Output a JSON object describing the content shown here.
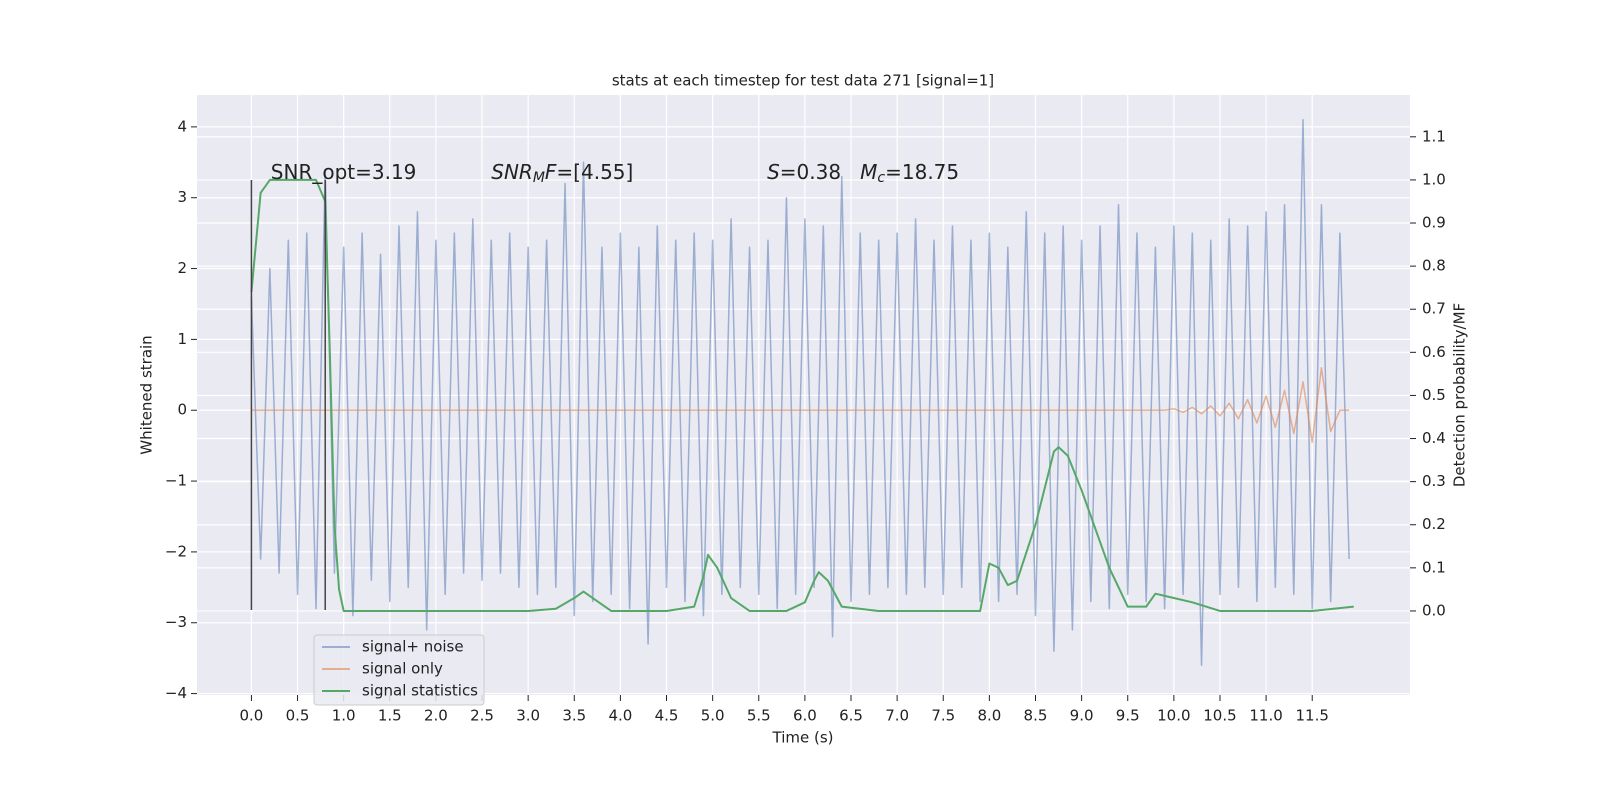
{
  "chart_data": {
    "type": "line",
    "title": "stats at each timestep for test data 271 [signal=1]",
    "xlabel": "Time (s)",
    "ylabel": "Whitened strain",
    "y2label": "Detection probability/MF",
    "xlim": [
      -0.59,
      12.56
    ],
    "ylim": [
      -4.02,
      4.45
    ],
    "y2lim": [
      -0.195,
      1.197
    ],
    "background": "#eaeaf2",
    "grid": true,
    "legend": "lower left",
    "xticks": [
      {
        "value": 0,
        "label": "0.0"
      },
      0.5,
      {
        "value": 1,
        "label": "1.0"
      },
      1.5,
      {
        "value": 2,
        "label": "2.0"
      },
      2.5,
      {
        "value": 3,
        "label": "3.0"
      },
      3.5,
      {
        "value": 4,
        "label": "4.0"
      },
      4.5,
      {
        "value": 5,
        "label": "5.0"
      },
      5.5,
      {
        "value": 6,
        "label": "6.0"
      },
      6.5,
      {
        "value": 7,
        "label": "7.0"
      },
      7.5,
      {
        "value": 8,
        "label": "8.0"
      },
      8.5,
      {
        "value": 9,
        "label": "9.0"
      },
      9.5,
      {
        "value": 10,
        "label": "10.0"
      },
      10.5,
      {
        "value": 11,
        "label": "11.0"
      },
      11.5
    ],
    "yticks": [
      {
        "value": -4,
        "label": "−4"
      },
      {
        "value": -3,
        "label": "−3"
      },
      {
        "value": -2,
        "label": "−2"
      },
      {
        "value": -1,
        "label": "−1"
      },
      0,
      1,
      2,
      3,
      4
    ],
    "y2ticks": [
      {
        "value": 0,
        "label": "0.0"
      },
      0.1,
      0.2,
      0.3,
      0.4,
      0.5,
      0.6,
      0.7,
      0.8,
      0.9,
      {
        "value": 1,
        "label": "1.0"
      },
      1.1
    ],
    "x": [
      0,
      0.1,
      0.2,
      0.3,
      0.4,
      0.5,
      0.6,
      0.7,
      0.8,
      0.9,
      1,
      1.1,
      1.2,
      1.3,
      1.4,
      1.5,
      1.6,
      1.7,
      1.8,
      1.9,
      2,
      2.1,
      2.2,
      2.3,
      2.4,
      2.5,
      2.6,
      2.7,
      2.8,
      2.9,
      3,
      3.1,
      3.2,
      3.3,
      3.4,
      3.5,
      3.6,
      3.7,
      3.8,
      3.9,
      4,
      4.1,
      4.2,
      4.3,
      4.4,
      4.5,
      4.6,
      4.7,
      4.8,
      4.9,
      5,
      5.1,
      5.2,
      5.3,
      5.4,
      5.5,
      5.6,
      5.7,
      5.8,
      5.9,
      6,
      6.1,
      6.2,
      6.3,
      6.4,
      6.5,
      6.6,
      6.7,
      6.8,
      6.9,
      7,
      7.1,
      7.2,
      7.3,
      7.4,
      7.5,
      7.6,
      7.7,
      7.8,
      7.9,
      8,
      8.1,
      8.2,
      8.3,
      8.4,
      8.5,
      8.6,
      8.7,
      8.8,
      8.9,
      9,
      9.1,
      9.2,
      9.3,
      9.4,
      9.5,
      9.6,
      9.7,
      9.8,
      9.9,
      10,
      10.1,
      10.2,
      10.3,
      10.4,
      10.5,
      10.6,
      10.7,
      10.8,
      10.9,
      11,
      11.1,
      11.2,
      11.3,
      11.4,
      11.5,
      11.6,
      11.7,
      11.8,
      11.9
    ],
    "series": [
      {
        "name": "signal+ noise",
        "color": "#4c72b0",
        "opacity": 0.5,
        "values": [
          1.6,
          -2.1,
          2.0,
          -2.3,
          2.4,
          -2.6,
          2.5,
          -2.8,
          3.4,
          -2.3,
          2.3,
          -2.9,
          2.5,
          -2.4,
          2.2,
          -2.7,
          2.6,
          -2.5,
          2.8,
          -3.1,
          2.4,
          -2.6,
          2.5,
          -2.3,
          2.7,
          -2.4,
          2.4,
          -2.3,
          2.5,
          -2.5,
          2.3,
          -2.6,
          2.4,
          -2.5,
          3.2,
          -2.9,
          3.5,
          -2.7,
          2.3,
          -2.6,
          2.5,
          -2.8,
          2.3,
          -3.3,
          2.6,
          -2.5,
          2.4,
          -2.7,
          2.5,
          -2.9,
          2.4,
          -2.6,
          2.7,
          -2.5,
          2.3,
          -2.6,
          2.4,
          -2.8,
          3.0,
          -2.6,
          2.7,
          -2.5,
          2.6,
          -3.2,
          3.3,
          -2.7,
          2.5,
          -2.6,
          2.4,
          -2.5,
          2.5,
          -2.6,
          2.7,
          -2.5,
          2.4,
          -2.6,
          2.6,
          -2.5,
          2.4,
          -2.7,
          2.5,
          -2.7,
          2.3,
          -2.6,
          2.8,
          -2.9,
          2.5,
          -3.4,
          2.6,
          -3.1,
          2.4,
          -2.7,
          2.6,
          -2.8,
          2.9,
          -2.6,
          2.5,
          -2.7,
          2.3,
          -2.8,
          2.6,
          -2.6,
          2.5,
          -3.6,
          2.4,
          -2.6,
          2.7,
          -2.5,
          2.6,
          -2.7,
          2.8,
          -2.5,
          2.9,
          -2.6,
          4.1,
          -2.8,
          2.9,
          -2.7,
          2.5,
          -2.1
        ]
      },
      {
        "name": "signal only",
        "color": "#dd8452",
        "opacity": 0.6,
        "values": [
          0,
          0,
          0,
          0,
          0,
          0,
          0,
          0,
          0,
          0,
          0,
          0,
          0,
          0,
          0,
          0,
          0,
          0,
          0,
          0,
          0,
          0,
          0,
          0,
          0,
          0,
          0,
          0,
          0,
          0,
          0,
          0,
          0,
          0,
          0,
          0,
          0,
          0,
          0,
          0,
          0,
          0,
          0,
          0,
          0,
          0,
          0,
          0,
          0,
          0,
          0,
          0,
          0,
          0,
          0,
          0,
          0,
          0,
          0,
          0,
          0,
          0,
          0,
          0,
          0,
          0,
          0,
          0,
          0,
          0,
          0,
          0,
          0,
          0,
          0,
          0,
          0,
          0,
          0,
          0,
          0,
          0,
          0,
          0,
          0,
          0,
          0,
          0,
          0,
          0,
          0,
          0,
          0,
          0,
          0,
          0,
          0,
          0,
          0,
          0,
          0.02,
          -0.03,
          0.04,
          -0.05,
          0.06,
          -0.08,
          0.1,
          -0.12,
          0.15,
          -0.18,
          0.2,
          -0.24,
          0.28,
          -0.33,
          0.4,
          -0.45,
          0.6,
          -0.3,
          0,
          0
        ]
      },
      {
        "name": "signal statistics",
        "color": "#55a868",
        "opacity": 1,
        "axis": "y2",
        "x": [
          0,
          0.1,
          0.2,
          0.4,
          0.6,
          0.7,
          0.8,
          0.85,
          0.9,
          0.95,
          1.0,
          1.5,
          2.0,
          2.5,
          3.0,
          3.3,
          3.5,
          3.6,
          3.7,
          3.9,
          4.5,
          4.8,
          4.9,
          4.95,
          5.05,
          5.2,
          5.4,
          5.8,
          6.0,
          6.1,
          6.15,
          6.25,
          6.4,
          6.8,
          7.5,
          7.9,
          8.0,
          8.1,
          8.2,
          8.3,
          8.5,
          8.7,
          8.75,
          8.85,
          9.0,
          9.3,
          9.5,
          9.7,
          9.8,
          10.0,
          10.2,
          10.5,
          11.0,
          11.5,
          11.95
        ],
        "values": [
          0.74,
          0.97,
          1.0,
          1.0,
          1.0,
          1.0,
          0.95,
          0.6,
          0.2,
          0.05,
          0,
          0,
          0,
          0,
          0,
          0.005,
          0.03,
          0.045,
          0.03,
          0,
          0,
          0.01,
          0.08,
          0.13,
          0.1,
          0.03,
          0,
          0,
          0.02,
          0.07,
          0.09,
          0.07,
          0.01,
          0,
          0,
          0,
          0.11,
          0.1,
          0.06,
          0.07,
          0.2,
          0.37,
          0.38,
          0.36,
          0.28,
          0.1,
          0.01,
          0.01,
          0.04,
          0.03,
          0.02,
          0,
          0,
          0,
          0.01
        ]
      }
    ],
    "markers": {
      "x": [
        0,
        0.8
      ],
      "ymin": -2.82,
      "ymax": 3.25,
      "color": "#444444"
    },
    "annotations": [
      {
        "x": 0.21,
        "y": 3.35,
        "parts": [
          {
            "text": "SNR_opt=3.19",
            "style": "normal"
          }
        ]
      },
      {
        "x": 2.6,
        "y": 3.35,
        "parts": [
          {
            "text": "SNR",
            "style": "italic"
          },
          {
            "text": "M",
            "style": "sub"
          },
          {
            "text": "F",
            "style": "italic"
          },
          {
            "text": "=[4.55]",
            "style": "normal"
          }
        ]
      },
      {
        "x": 5.59,
        "y": 3.35,
        "parts": [
          {
            "text": "S",
            "style": "italic"
          },
          {
            "text": "=0.38   ",
            "style": "normal"
          },
          {
            "text": "M",
            "style": "italic"
          },
          {
            "text": "c",
            "style": "sub"
          },
          {
            "text": "=18.75",
            "style": "normal"
          }
        ]
      }
    ]
  }
}
